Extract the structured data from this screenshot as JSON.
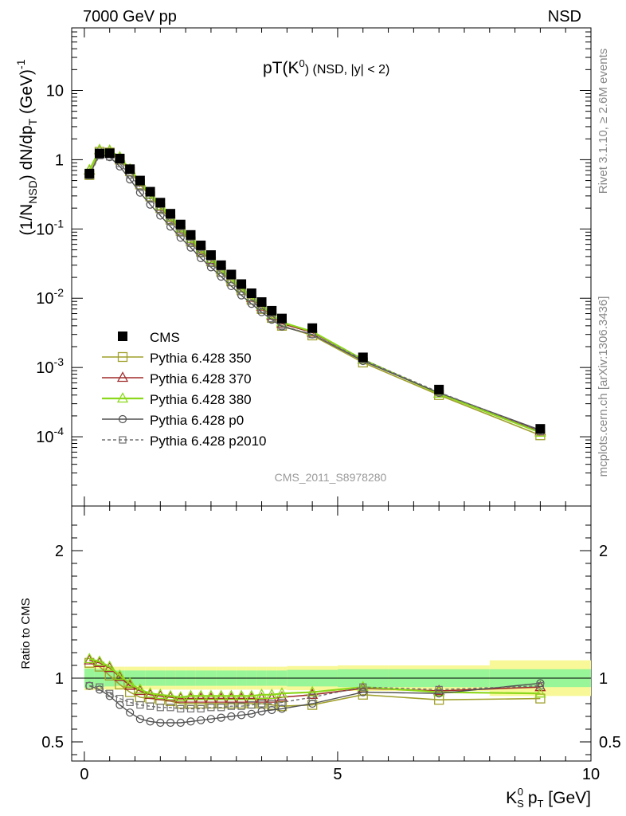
{
  "header": {
    "energy_label": "7000 GeV pp",
    "process_label": "NSD"
  },
  "side_labels": {
    "rivet": "Rivet 3.1.10, ≥ 2.6M events",
    "mcplots": "mcplots.cern.ch [arXiv:1306.3436]"
  },
  "colors": {
    "CMS": "#000000",
    "Pythia 6.428 350": "#a0a02c",
    "Pythia 6.428 370": "#a02c2c",
    "Pythia 6.428 380": "#8cd81c",
    "Pythia 6.428 p0": "#505050",
    "Pythia 6.428 p2010": "#707070",
    "band_inner": "#98f598",
    "band_outer": "#f8f898"
  },
  "chart_data": [
    {
      "type": "line",
      "title": "pT(K⁰) (NSD, |y| < 2)",
      "title_parts": {
        "main": "pT(K",
        "sup": "0",
        "rest": ") (NSD, |y| < 2)"
      },
      "ylabel": "(1/N_NSD) dN/dp_T (GeV)^-1",
      "ylabel_parts": {
        "a": "(1/N",
        "sub1": "NSD",
        "b": ") dN/dp",
        "sub2": "T",
        "c": " (GeV)",
        "sup": "-1"
      },
      "yscale": "log",
      "ylim": [
        1e-05,
        80
      ],
      "xlim": [
        -0.25,
        10
      ],
      "y_tick_labels": [
        "10",
        "1",
        "10^-1",
        "10^-2",
        "10^-3",
        "10^-4"
      ],
      "watermark": "CMS_2011_S8978280",
      "legend_position": "lower-left",
      "x": [
        0.1,
        0.3,
        0.5,
        0.7,
        0.9,
        1.1,
        1.3,
        1.5,
        1.7,
        1.9,
        2.1,
        2.3,
        2.5,
        2.7,
        2.9,
        3.1,
        3.3,
        3.5,
        3.7,
        3.9,
        4.5,
        5.5,
        7.0,
        9.0
      ],
      "series": [
        {
          "name": "CMS",
          "values": [
            0.63,
            1.23,
            1.24,
            1.04,
            0.73,
            0.5,
            0.345,
            0.24,
            0.166,
            0.116,
            0.082,
            0.058,
            0.042,
            0.03,
            0.022,
            0.016,
            0.0118,
            0.0088,
            0.0066,
            0.0051,
            0.0037,
            0.0014,
            0.00048,
            0.00013
          ]
        },
        {
          "name": "Pythia 6.428 350",
          "values": [
            0.6,
            1.3,
            1.27,
            1.0,
            0.68,
            0.44,
            0.295,
            0.2,
            0.136,
            0.093,
            0.066,
            0.047,
            0.034,
            0.024,
            0.0175,
            0.013,
            0.0095,
            0.007,
            0.0052,
            0.004,
            0.0029,
            0.00118,
            0.0004,
            0.000105
          ]
        },
        {
          "name": "Pythia 6.428 370",
          "values": [
            0.7,
            1.38,
            1.35,
            1.08,
            0.72,
            0.47,
            0.31,
            0.21,
            0.145,
            0.1,
            0.071,
            0.05,
            0.036,
            0.026,
            0.019,
            0.014,
            0.0102,
            0.0076,
            0.0056,
            0.0043,
            0.0032,
            0.0013,
            0.00042,
            0.00012
          ]
        },
        {
          "name": "Pythia 6.428 380",
          "values": [
            0.71,
            1.39,
            1.36,
            1.09,
            0.73,
            0.48,
            0.31,
            0.215,
            0.147,
            0.102,
            0.072,
            0.051,
            0.037,
            0.026,
            0.019,
            0.014,
            0.0104,
            0.0078,
            0.0058,
            0.0045,
            0.0033,
            0.0013,
            0.00042,
            0.000115
          ]
        },
        {
          "name": "Pythia 6.428 p0",
          "values": [
            0.6,
            1.2,
            1.09,
            0.8,
            0.52,
            0.335,
            0.225,
            0.156,
            0.108,
            0.075,
            0.054,
            0.038,
            0.028,
            0.0205,
            0.015,
            0.011,
            0.0083,
            0.0063,
            0.0049,
            0.0039,
            0.003,
            0.00124,
            0.00043,
            0.000125
          ]
        },
        {
          "name": "Pythia 6.428 p2010",
          "values": [
            0.59,
            1.15,
            1.1,
            0.88,
            0.6,
            0.4,
            0.27,
            0.185,
            0.127,
            0.088,
            0.062,
            0.044,
            0.032,
            0.023,
            0.017,
            0.0125,
            0.0092,
            0.0069,
            0.0051,
            0.004,
            0.003,
            0.0013,
            0.00044,
            0.00012
          ]
        }
      ]
    },
    {
      "type": "line",
      "title": "",
      "xlabel": "K_S^0 p_T [GeV]",
      "xlabel_parts": {
        "k": "K",
        "sub": "S",
        "sup": "0",
        "p": " p",
        "psub": "T",
        "rest": " [GeV]"
      },
      "ylabel": "Ratio to CMS",
      "ylim": [
        0.35,
        2.35
      ],
      "xlim": [
        -0.25,
        10
      ],
      "x_ticks": [
        0,
        5,
        10
      ],
      "x_tick_labels": [
        "0",
        "5",
        "10"
      ],
      "y_ticks": [
        0.5,
        1,
        2
      ],
      "y_tick_labels": [
        "0.5",
        "1",
        "2"
      ],
      "bands": {
        "x_edges": [
          0,
          0.2,
          0.4,
          0.6,
          0.8,
          1.0,
          1.2,
          1.4,
          1.6,
          1.8,
          2.0,
          2.2,
          2.4,
          2.6,
          2.8,
          3.0,
          3.2,
          3.4,
          3.6,
          3.8,
          4.0,
          5.0,
          6.0,
          8.0,
          10.0
        ],
        "inner": [
          0.075,
          0.07,
          0.065,
          0.06,
          0.06,
          0.06,
          0.06,
          0.06,
          0.06,
          0.06,
          0.06,
          0.06,
          0.06,
          0.06,
          0.06,
          0.06,
          0.06,
          0.06,
          0.06,
          0.06,
          0.065,
          0.07,
          0.07,
          0.07
        ],
        "outer": [
          0.095,
          0.09,
          0.09,
          0.09,
          0.09,
          0.09,
          0.09,
          0.09,
          0.09,
          0.09,
          0.09,
          0.09,
          0.09,
          0.09,
          0.09,
          0.09,
          0.09,
          0.09,
          0.09,
          0.09,
          0.095,
          0.1,
          0.1,
          0.14
        ]
      },
      "x": [
        0.1,
        0.3,
        0.5,
        0.7,
        0.9,
        1.1,
        1.3,
        1.5,
        1.7,
        1.9,
        2.1,
        2.3,
        2.5,
        2.7,
        2.9,
        3.1,
        3.3,
        3.5,
        3.7,
        3.9,
        4.5,
        5.5,
        7.0,
        9.0
      ],
      "series": [
        {
          "name": "Pythia 6.428 350",
          "values": [
            1.12,
            1.09,
            1.02,
            0.95,
            0.89,
            0.85,
            0.84,
            0.83,
            0.82,
            0.8,
            0.8,
            0.8,
            0.8,
            0.8,
            0.8,
            0.8,
            0.8,
            0.8,
            0.79,
            0.78,
            0.79,
            0.87,
            0.83,
            0.84
          ]
        },
        {
          "name": "Pythia 6.428 370",
          "values": [
            1.14,
            1.12,
            1.08,
            1.01,
            0.94,
            0.9,
            0.87,
            0.86,
            0.85,
            0.84,
            0.84,
            0.84,
            0.84,
            0.84,
            0.84,
            0.84,
            0.84,
            0.84,
            0.84,
            0.85,
            0.87,
            0.92,
            0.9,
            0.93
          ]
        },
        {
          "name": "Pythia 6.428 380",
          "values": [
            1.15,
            1.13,
            1.09,
            1.02,
            0.96,
            0.91,
            0.88,
            0.87,
            0.86,
            0.85,
            0.86,
            0.86,
            0.86,
            0.86,
            0.86,
            0.86,
            0.86,
            0.87,
            0.87,
            0.88,
            0.89,
            0.93,
            0.89,
            0.88
          ]
        },
        {
          "name": "Pythia 6.428 p0",
          "values": [
            0.94,
            0.91,
            0.86,
            0.79,
            0.73,
            0.68,
            0.66,
            0.65,
            0.65,
            0.65,
            0.66,
            0.67,
            0.68,
            0.69,
            0.7,
            0.71,
            0.72,
            0.74,
            0.75,
            0.76,
            0.8,
            0.89,
            0.88,
            0.96
          ]
        },
        {
          "name": "Pythia 6.428 p2010",
          "values": [
            0.94,
            0.93,
            0.88,
            0.84,
            0.81,
            0.79,
            0.78,
            0.77,
            0.77,
            0.76,
            0.76,
            0.76,
            0.77,
            0.77,
            0.78,
            0.78,
            0.79,
            0.8,
            0.8,
            0.81,
            0.85,
            0.93,
            0.91,
            0.94
          ]
        }
      ]
    }
  ]
}
